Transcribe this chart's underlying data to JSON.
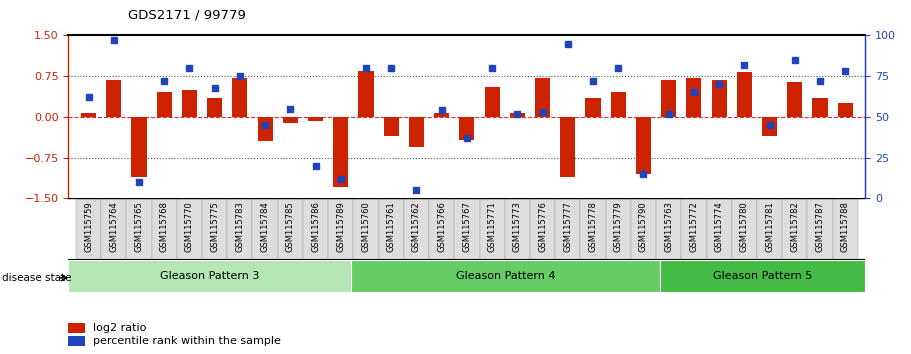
{
  "title": "GDS2171 / 99779",
  "samples": [
    "GSM115759",
    "GSM115764",
    "GSM115765",
    "GSM115768",
    "GSM115770",
    "GSM115775",
    "GSM115783",
    "GSM115784",
    "GSM115785",
    "GSM115786",
    "GSM115789",
    "GSM115760",
    "GSM115761",
    "GSM115762",
    "GSM115766",
    "GSM115767",
    "GSM115771",
    "GSM115773",
    "GSM115776",
    "GSM115777",
    "GSM115778",
    "GSM115779",
    "GSM115790",
    "GSM115763",
    "GSM115772",
    "GSM115774",
    "GSM115780",
    "GSM115781",
    "GSM115782",
    "GSM115787",
    "GSM115788"
  ],
  "log2_ratio": [
    0.07,
    0.68,
    -1.1,
    0.45,
    0.5,
    0.35,
    0.72,
    -0.45,
    -0.12,
    -0.08,
    -1.3,
    0.85,
    -0.35,
    -0.55,
    0.07,
    -0.42,
    0.55,
    0.07,
    0.72,
    -1.1,
    0.35,
    0.45,
    -1.05,
    0.68,
    0.72,
    0.68,
    0.82,
    -0.35,
    0.65,
    0.35,
    0.25
  ],
  "percentile": [
    62,
    97,
    10,
    72,
    80,
    68,
    75,
    45,
    55,
    20,
    12,
    80,
    80,
    5,
    54,
    37,
    80,
    52,
    53,
    95,
    72,
    80,
    15,
    52,
    65,
    70,
    82,
    45,
    85,
    72,
    78
  ],
  "groups": [
    {
      "label": "Gleason Pattern 3",
      "start": 0,
      "end": 11,
      "color": "#b3e6b3"
    },
    {
      "label": "Gleason Pattern 4",
      "start": 11,
      "end": 23,
      "color": "#66cc66"
    },
    {
      "label": "Gleason Pattern 5",
      "start": 23,
      "end": 31,
      "color": "#44bb44"
    }
  ],
  "ylim_left": [
    -1.5,
    1.5
  ],
  "ylim_right": [
    0,
    100
  ],
  "bar_color": "#cc2200",
  "dot_color": "#2244bb",
  "zero_line_color": "#cc3333",
  "dotted_line_color": "#555555",
  "background_color": "#ffffff"
}
